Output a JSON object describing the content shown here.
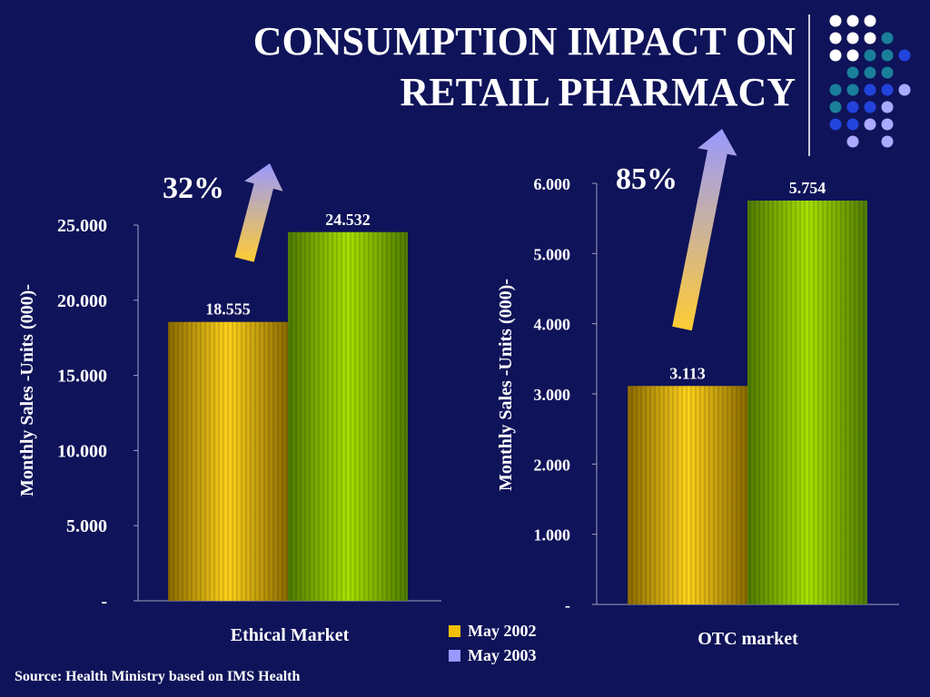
{
  "title_line1": "CONSUMPTION IMPACT ON",
  "title_line2": "RETAIL PHARMACY",
  "source": "Source: Health Ministry based on IMS Health",
  "legend": [
    {
      "label": "May 2002",
      "color": "#f2c000"
    },
    {
      "label": "May 2003",
      "color": "#9999ff"
    }
  ],
  "colors": {
    "background": "#0f1359",
    "bar_2002": "#e8b800",
    "bar_2003": "#7fbf00",
    "axis": "#a0a0c0"
  },
  "chart_data": [
    {
      "type": "bar",
      "categories": [
        "Ethical Market"
      ],
      "series": [
        {
          "name": "May 2002",
          "values": [
            18555
          ],
          "label": "18.555"
        },
        {
          "name": "May 2003",
          "values": [
            24532
          ],
          "label": "24.532"
        }
      ],
      "ylabel": "Monthly Sales -Units (000)-",
      "ylim": [
        0,
        25000
      ],
      "yticks": [
        {
          "value": 0,
          "label": "-"
        },
        {
          "value": 5000,
          "label": "5.000"
        },
        {
          "value": 10000,
          "label": "10.000"
        },
        {
          "value": 15000,
          "label": "15.000"
        },
        {
          "value": 20000,
          "label": "20.000"
        },
        {
          "value": 25000,
          "label": "25.000"
        }
      ],
      "annotation": "32%"
    },
    {
      "type": "bar",
      "categories": [
        "OTC market"
      ],
      "series": [
        {
          "name": "May 2002",
          "values": [
            3113
          ],
          "label": "3.113"
        },
        {
          "name": "May 2003",
          "values": [
            5754
          ],
          "label": "5.754"
        }
      ],
      "ylabel": "Monthly Sales -Units (000)-",
      "ylim": [
        0,
        6000
      ],
      "yticks": [
        {
          "value": 0,
          "label": "-"
        },
        {
          "value": 1000,
          "label": "1.000"
        },
        {
          "value": 2000,
          "label": "2.000"
        },
        {
          "value": 3000,
          "label": "3.000"
        },
        {
          "value": 4000,
          "label": "4.000"
        },
        {
          "value": 5000,
          "label": "5.000"
        },
        {
          "value": 6000,
          "label": "6.000"
        }
      ],
      "annotation": "85%"
    }
  ]
}
